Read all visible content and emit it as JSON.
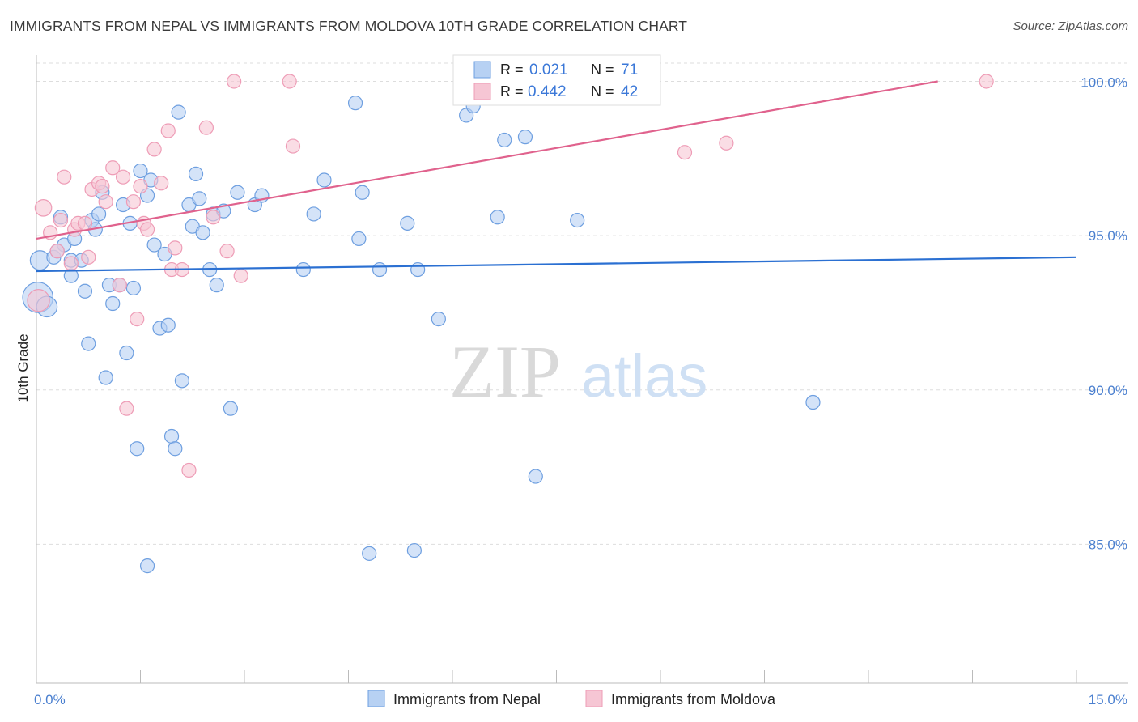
{
  "title": "IMMIGRANTS FROM NEPAL VS IMMIGRANTS FROM MOLDOVA 10TH GRADE CORRELATION CHART",
  "source": "Source: ZipAtlas.com",
  "watermark": {
    "zip": "ZIP",
    "atlas": "atlas"
  },
  "colors": {
    "nepal_fill": "#b7d1f3",
    "nepal_stroke": "#6e9fe0",
    "nepal_line": "#2b70d2",
    "moldova_fill": "#f6c6d4",
    "moldova_stroke": "#ee9cb6",
    "moldova_line": "#e0628d",
    "grid": "#dddddd",
    "tick_label": "#4a7fcf"
  },
  "legend": {
    "r_label": "R =",
    "n_label": "N =",
    "rows": [
      {
        "series": "nepal",
        "r": "0.021",
        "n": "71"
      },
      {
        "series": "moldova",
        "r": "0.442",
        "n": "42"
      }
    ]
  },
  "chart_data": {
    "type": "scatter",
    "title": "IMMIGRANTS FROM NEPAL VS IMMIGRANTS FROM MOLDOVA 10TH GRADE CORRELATION CHART",
    "xlabel": "",
    "ylabel": "10th Grade",
    "xlim": [
      0,
      15
    ],
    "ylim": [
      80.5,
      100.8
    ],
    "x_tick_labels": [
      "0.0%",
      "15.0%"
    ],
    "y_ticks": [
      85,
      90,
      95,
      100
    ],
    "y_tick_labels": [
      "85.0%",
      "90.0%",
      "95.0%",
      "100.0%"
    ],
    "grid": true,
    "legend_placement": "top-center",
    "series": [
      {
        "name": "Immigrants from Nepal",
        "trend": [
          [
            0,
            93.85
          ],
          [
            15,
            94.3
          ]
        ],
        "points": [
          [
            0.02,
            93.0,
            2.2
          ],
          [
            0.15,
            92.7,
            1.5
          ],
          [
            0.05,
            94.2,
            1.4
          ],
          [
            0.25,
            94.3,
            1.0
          ],
          [
            0.35,
            95.6,
            1.0
          ],
          [
            0.5,
            94.2,
            1.0
          ],
          [
            0.4,
            94.7,
            1.0
          ],
          [
            0.55,
            94.9,
            1.0
          ],
          [
            0.5,
            93.7,
            1.0
          ],
          [
            0.65,
            94.2,
            1.0
          ],
          [
            0.7,
            93.2,
            1.0
          ],
          [
            0.75,
            91.5,
            1.0
          ],
          [
            0.8,
            95.5,
            1.0
          ],
          [
            0.85,
            95.2,
            1.0
          ],
          [
            0.9,
            95.7,
            1.0
          ],
          [
            0.95,
            96.4,
            1.0
          ],
          [
            1.0,
            90.4,
            1.0
          ],
          [
            1.05,
            93.4,
            1.0
          ],
          [
            1.1,
            92.8,
            1.0
          ],
          [
            1.2,
            93.4,
            1.0
          ],
          [
            1.25,
            96.0,
            1.0
          ],
          [
            1.3,
            91.2,
            1.0
          ],
          [
            1.35,
            95.4,
            1.0
          ],
          [
            1.4,
            93.3,
            1.0
          ],
          [
            1.45,
            88.1,
            1.0
          ],
          [
            1.5,
            97.1,
            1.0
          ],
          [
            1.6,
            96.3,
            1.0
          ],
          [
            1.6,
            84.3,
            1.0
          ],
          [
            1.65,
            96.8,
            1.0
          ],
          [
            1.7,
            94.7,
            1.0
          ],
          [
            1.78,
            92.0,
            1.0
          ],
          [
            1.85,
            94.4,
            1.0
          ],
          [
            1.9,
            92.1,
            1.0
          ],
          [
            1.95,
            88.5,
            1.0
          ],
          [
            2.0,
            88.1,
            1.0
          ],
          [
            2.05,
            99.0,
            1.0
          ],
          [
            2.1,
            90.3,
            1.0
          ],
          [
            2.2,
            96.0,
            1.0
          ],
          [
            2.25,
            95.3,
            1.0
          ],
          [
            2.3,
            97.0,
            1.0
          ],
          [
            2.35,
            96.2,
            1.0
          ],
          [
            2.4,
            95.1,
            1.0
          ],
          [
            2.5,
            93.9,
            1.0
          ],
          [
            2.55,
            95.7,
            1.0
          ],
          [
            2.6,
            93.4,
            1.0
          ],
          [
            2.7,
            95.8,
            1.0
          ],
          [
            2.8,
            89.4,
            1.0
          ],
          [
            2.9,
            96.4,
            1.0
          ],
          [
            3.15,
            96.0,
            1.0
          ],
          [
            3.25,
            96.3,
            1.0
          ],
          [
            3.85,
            93.9,
            1.0
          ],
          [
            4.0,
            95.7,
            1.0
          ],
          [
            4.15,
            96.8,
            1.0
          ],
          [
            4.6,
            99.3,
            1.0
          ],
          [
            4.65,
            94.9,
            1.0
          ],
          [
            4.7,
            96.4,
            1.0
          ],
          [
            4.8,
            84.7,
            1.0
          ],
          [
            4.95,
            93.9,
            1.0
          ],
          [
            5.35,
            95.4,
            1.0
          ],
          [
            5.45,
            84.8,
            1.0
          ],
          [
            5.5,
            93.9,
            1.0
          ],
          [
            5.8,
            92.3,
            1.0
          ],
          [
            6.2,
            98.9,
            1.0
          ],
          [
            6.3,
            99.2,
            1.0
          ],
          [
            6.65,
            95.6,
            1.0
          ],
          [
            6.75,
            98.1,
            1.0
          ],
          [
            7.05,
            98.2,
            1.0
          ],
          [
            7.2,
            87.2,
            1.0
          ],
          [
            7.8,
            95.5,
            1.0
          ],
          [
            11.2,
            89.6,
            1.0
          ],
          [
            0.3,
            94.5,
            1.0
          ]
        ]
      },
      {
        "name": "Immigrants from Moldova",
        "trend": [
          [
            0,
            94.9
          ],
          [
            13,
            100.0
          ]
        ],
        "points": [
          [
            0.03,
            92.9,
            1.6
          ],
          [
            0.1,
            95.9,
            1.2
          ],
          [
            0.2,
            95.1,
            1.0
          ],
          [
            0.3,
            94.5,
            1.0
          ],
          [
            0.35,
            95.5,
            1.0
          ],
          [
            0.4,
            96.9,
            1.0
          ],
          [
            0.5,
            94.1,
            1.0
          ],
          [
            0.55,
            95.2,
            1.0
          ],
          [
            0.6,
            95.4,
            1.0
          ],
          [
            0.7,
            95.4,
            1.0
          ],
          [
            0.75,
            94.3,
            1.0
          ],
          [
            0.8,
            96.5,
            1.0
          ],
          [
            0.9,
            96.7,
            1.0
          ],
          [
            0.95,
            96.6,
            1.0
          ],
          [
            1.0,
            96.1,
            1.0
          ],
          [
            1.1,
            97.2,
            1.0
          ],
          [
            1.2,
            93.4,
            1.0
          ],
          [
            1.25,
            96.9,
            1.0
          ],
          [
            1.3,
            89.4,
            1.0
          ],
          [
            1.4,
            96.1,
            1.0
          ],
          [
            1.45,
            92.3,
            1.0
          ],
          [
            1.5,
            96.6,
            1.0
          ],
          [
            1.55,
            95.4,
            1.0
          ],
          [
            1.6,
            95.2,
            1.0
          ],
          [
            1.7,
            97.8,
            1.0
          ],
          [
            1.8,
            96.7,
            1.0
          ],
          [
            1.9,
            98.4,
            1.0
          ],
          [
            1.95,
            93.9,
            1.0
          ],
          [
            2.0,
            94.6,
            1.0
          ],
          [
            2.1,
            93.9,
            1.0
          ],
          [
            2.2,
            87.4,
            1.0
          ],
          [
            2.45,
            98.5,
            1.0
          ],
          [
            2.55,
            95.6,
            1.0
          ],
          [
            2.75,
            94.5,
            1.0
          ],
          [
            2.85,
            100.0,
            1.0
          ],
          [
            2.95,
            93.7,
            1.0
          ],
          [
            3.65,
            100.0,
            1.0
          ],
          [
            3.7,
            97.9,
            1.0
          ],
          [
            8.0,
            100.0,
            1.0
          ],
          [
            9.35,
            97.7,
            1.0
          ],
          [
            9.95,
            98.0,
            1.0
          ],
          [
            13.7,
            100.0,
            1.0
          ]
        ]
      }
    ]
  }
}
